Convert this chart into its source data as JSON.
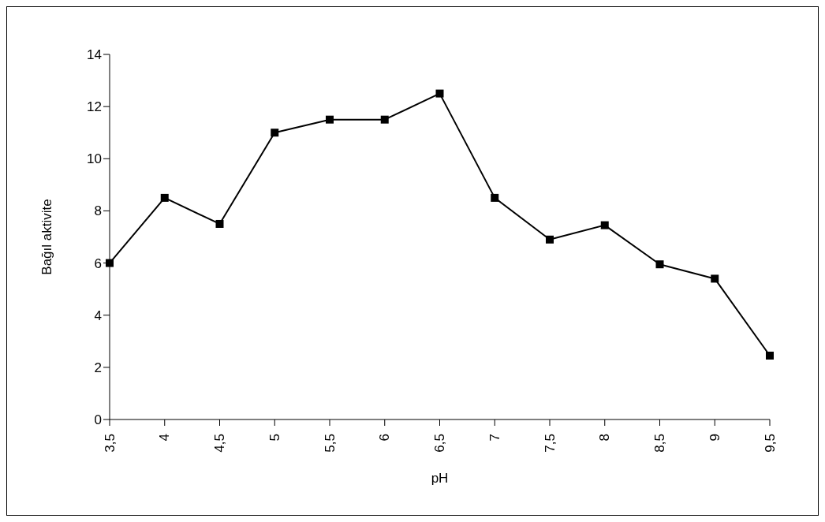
{
  "chart_data": {
    "type": "line",
    "xlabel": "pH",
    "ylabel": "Bağıl aktivite",
    "categories": [
      "3,5",
      "4",
      "4,5",
      "5",
      "5,5",
      "6",
      "6,5",
      "7",
      "7,5",
      "8",
      "8,5",
      "9",
      "9,5"
    ],
    "series": [
      {
        "color": "#000000",
        "values": [
          6,
          8.5,
          7.5,
          11,
          11.5,
          11.5,
          12.5,
          8.5,
          6.9,
          7.45,
          5.95,
          5.4,
          2.45
        ]
      }
    ],
    "ylim": [
      0,
      14
    ],
    "yticks": [
      0,
      2,
      4,
      6,
      8,
      10,
      12,
      14
    ],
    "grid": false,
    "legend": false,
    "marker": "square",
    "line_style": "solid"
  }
}
